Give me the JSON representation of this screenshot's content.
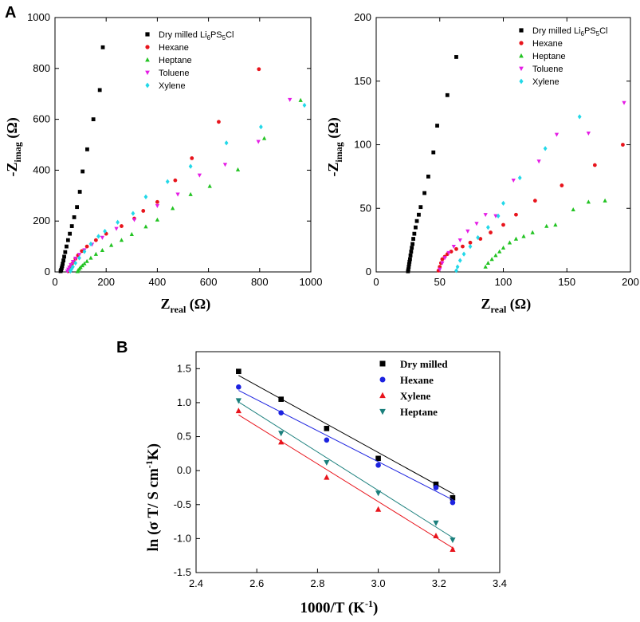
{
  "panel_labels": {
    "a": "A",
    "b": "B"
  },
  "chart_data": [
    {
      "id": "A1",
      "type": "scatter",
      "title": "",
      "xlabel": "Z",
      "xlabel_sub": "real",
      "xlabel_unit": " (Ω)",
      "ylabel": "-Z",
      "ylabel_sub": "imag",
      "ylabel_unit": " (Ω)",
      "xlim": [
        0,
        1000
      ],
      "ylim": [
        0,
        1000
      ],
      "xticks": [
        0,
        200,
        400,
        600,
        800,
        1000
      ],
      "yticks": [
        0,
        200,
        400,
        600,
        800,
        1000
      ],
      "legend": "top-right",
      "series": [
        {
          "name": "Dry milled Li6PS5Cl",
          "label_main": "Dry milled Li",
          "sub1": "6",
          "mid": "PS",
          "sub2": "5",
          "tail": "Cl",
          "color": "#000000",
          "marker": "square",
          "points": [
            [
              22,
              3
            ],
            [
              24,
              8
            ],
            [
              26,
              14
            ],
            [
              28,
              22
            ],
            [
              30,
              32
            ],
            [
              33,
              45
            ],
            [
              36,
              60
            ],
            [
              40,
              78
            ],
            [
              45,
              100
            ],
            [
              51,
              125
            ],
            [
              58,
              150
            ],
            [
              66,
              180
            ],
            [
              75,
              215
            ],
            [
              86,
              255
            ],
            [
              97,
              315
            ],
            [
              108,
              395
            ],
            [
              126,
              482
            ],
            [
              150,
              600
            ],
            [
              175,
              715
            ],
            [
              187,
              883
            ]
          ]
        },
        {
          "name": "Hexane",
          "label_main": "Hexane",
          "color": "#e8141c",
          "marker": "circle",
          "points": [
            [
              52,
              3
            ],
            [
              55,
              8
            ],
            [
              58,
              14
            ],
            [
              62,
              22
            ],
            [
              66,
              30
            ],
            [
              72,
              40
            ],
            [
              80,
              52
            ],
            [
              90,
              65
            ],
            [
              105,
              82
            ],
            [
              125,
              100
            ],
            [
              160,
              125
            ],
            [
              200,
              150
            ],
            [
              260,
              180
            ],
            [
              310,
              210
            ],
            [
              345,
              240
            ],
            [
              400,
              275
            ],
            [
              470,
              360
            ],
            [
              535,
              447
            ],
            [
              640,
              590
            ],
            [
              797,
              797
            ]
          ]
        },
        {
          "name": "Heptane",
          "label_main": "Heptane",
          "color": "#22c322",
          "marker": "triangle",
          "points": [
            [
              88,
              2
            ],
            [
              90,
              6
            ],
            [
              95,
              12
            ],
            [
              100,
              18
            ],
            [
              107,
              25
            ],
            [
              115,
              33
            ],
            [
              125,
              42
            ],
            [
              140,
              55
            ],
            [
              160,
              70
            ],
            [
              185,
              85
            ],
            [
              220,
              105
            ],
            [
              260,
              125
            ],
            [
              300,
              148
            ],
            [
              355,
              178
            ],
            [
              400,
              205
            ],
            [
              460,
              250
            ],
            [
              530,
              305
            ],
            [
              605,
              337
            ],
            [
              715,
              402
            ],
            [
              818,
              525
            ],
            [
              960,
              675
            ]
          ]
        },
        {
          "name": "Toluene",
          "label_main": "Toluene",
          "color": "#e51ce5",
          "marker": "triangle-down",
          "points": [
            [
              48,
              3
            ],
            [
              52,
              10
            ],
            [
              56,
              18
            ],
            [
              62,
              28
            ],
            [
              70,
              40
            ],
            [
              80,
              53
            ],
            [
              95,
              68
            ],
            [
              115,
              86
            ],
            [
              145,
              108
            ],
            [
              185,
              135
            ],
            [
              240,
              170
            ],
            [
              310,
              205
            ],
            [
              400,
              260
            ],
            [
              480,
              305
            ],
            [
              565,
              380
            ],
            [
              665,
              422
            ],
            [
              795,
              512
            ],
            [
              918,
              677
            ]
          ]
        },
        {
          "name": "Xylene",
          "label_main": "Xylene",
          "color": "#22d8e8",
          "marker": "diamond",
          "points": [
            [
              60,
              3
            ],
            [
              64,
              10
            ],
            [
              70,
              20
            ],
            [
              80,
              35
            ],
            [
              95,
              55
            ],
            [
              115,
              80
            ],
            [
              140,
              110
            ],
            [
              170,
              140
            ],
            [
              195,
              160
            ],
            [
              245,
              195
            ],
            [
              305,
              230
            ],
            [
              355,
              295
            ],
            [
              440,
              355
            ],
            [
              530,
              415
            ],
            [
              670,
              507
            ],
            [
              805,
              570
            ],
            [
              975,
              655
            ]
          ]
        }
      ]
    },
    {
      "id": "A2",
      "type": "scatter",
      "title": "",
      "xlabel": "Z",
      "xlabel_sub": "real",
      "xlabel_unit": " (Ω)",
      "ylabel": "-Z",
      "ylabel_sub": "imag",
      "ylabel_unit": " (Ω)",
      "xlim": [
        0,
        200
      ],
      "ylim": [
        0,
        200
      ],
      "xticks": [
        0,
        50,
        100,
        150,
        200
      ],
      "yticks": [
        0,
        50,
        100,
        150,
        200
      ],
      "legend": "top-right",
      "series": [
        {
          "name": "Dry milled Li6PS5Cl",
          "label_main": "Dry milled Li",
          "sub1": "6",
          "mid": "PS",
          "sub2": "5",
          "tail": "Cl",
          "color": "#000000",
          "marker": "square",
          "points": [
            [
              25,
              0.5
            ],
            [
              25.3,
              2
            ],
            [
              25.6,
              4
            ],
            [
              25.9,
              6
            ],
            [
              26.2,
              8
            ],
            [
              26.6,
              10
            ],
            [
              27,
              13
            ],
            [
              27.5,
              16
            ],
            [
              28,
              19
            ],
            [
              28.6,
              22
            ],
            [
              29.2,
              26
            ],
            [
              30,
              30
            ],
            [
              31,
              35
            ],
            [
              32,
              40
            ],
            [
              33.5,
              45
            ],
            [
              35,
              51
            ],
            [
              38,
              62
            ],
            [
              41,
              75
            ],
            [
              45,
              94
            ],
            [
              48,
              115
            ],
            [
              56,
              139
            ],
            [
              63,
              169
            ]
          ]
        },
        {
          "name": "Hexane",
          "label_main": "Hexane",
          "color": "#e8141c",
          "marker": "circle",
          "points": [
            [
              49,
              1
            ],
            [
              50,
              4
            ],
            [
              51,
              7
            ],
            [
              52,
              10
            ],
            [
              54,
              12
            ],
            [
              56,
              14
            ],
            [
              59,
              16
            ],
            [
              63,
              18
            ],
            [
              68,
              20
            ],
            [
              74,
              23
            ],
            [
              82,
              26
            ],
            [
              90,
              31
            ],
            [
              100,
              37
            ],
            [
              110,
              45
            ],
            [
              125,
              56
            ],
            [
              146,
              68
            ],
            [
              172,
              84
            ],
            [
              194,
              100
            ]
          ]
        },
        {
          "name": "Heptane",
          "label_main": "Heptane",
          "color": "#22c322",
          "marker": "triangle",
          "points": [
            [
              86,
              4
            ],
            [
              88,
              7
            ],
            [
              91,
              10
            ],
            [
              94,
              13
            ],
            [
              97,
              16
            ],
            [
              100,
              19
            ],
            [
              105,
              23
            ],
            [
              110,
              26
            ],
            [
              116,
              28
            ],
            [
              123,
              31
            ],
            [
              134,
              36
            ],
            [
              141,
              37
            ],
            [
              155,
              49
            ],
            [
              167,
              55
            ],
            [
              180,
              56
            ]
          ]
        },
        {
          "name": "Toluene",
          "label_main": "Toluene",
          "color": "#e51ce5",
          "marker": "triangle-down",
          "points": [
            [
              50,
              2
            ],
            [
              52,
              7
            ],
            [
              54,
              11
            ],
            [
              57,
              15
            ],
            [
              61,
              20
            ],
            [
              66,
              25
            ],
            [
              72,
              32
            ],
            [
              79,
              38
            ],
            [
              86,
              45
            ],
            [
              94,
              44
            ],
            [
              108,
              72
            ],
            [
              128,
              87
            ],
            [
              142,
              108
            ],
            [
              167,
              109
            ],
            [
              195,
              133
            ]
          ]
        },
        {
          "name": "Xylene",
          "label_main": "Xylene",
          "color": "#22d8e8",
          "marker": "diamond",
          "points": [
            [
              63,
              1
            ],
            [
              64,
              4
            ],
            [
              66,
              9
            ],
            [
              69,
              14
            ],
            [
              74,
              20
            ],
            [
              80,
              27
            ],
            [
              88,
              35
            ],
            [
              96,
              44
            ],
            [
              100,
              54
            ],
            [
              113,
              74
            ],
            [
              133,
              97
            ],
            [
              160,
              122
            ]
          ]
        }
      ]
    },
    {
      "id": "B",
      "type": "scatter",
      "title": "",
      "xlabel": "1000/T (K",
      "xlabel_sup": "-1",
      "xlabel_tail": ")",
      "ylabel": "ln (σ T/ S cm",
      "ylabel_sup": "-1",
      "ylabel_tail": "K)",
      "xlim": [
        2.4,
        3.4
      ],
      "ylim": [
        -1.5,
        1.75
      ],
      "xticks": [
        2.4,
        2.6,
        2.8,
        3.0,
        3.2,
        3.4
      ],
      "yticks": [
        -1.5,
        -1.0,
        -0.5,
        0.0,
        0.5,
        1.0,
        1.5
      ],
      "xtick_labels": [
        "2.4",
        "2.6",
        "2.8",
        "3.0",
        "3.2",
        "3.4"
      ],
      "ytick_labels": [
        "-1.5",
        "-1.0",
        "-0.5",
        "0.0",
        "0.5",
        "1.0",
        "1.5"
      ],
      "legend": "top-right",
      "series": [
        {
          "name": "Dry milled",
          "color": "#000000",
          "marker": "square",
          "x": [
            2.54,
            2.68,
            2.83,
            3.0,
            3.19,
            3.245
          ],
          "y": [
            1.46,
            1.05,
            0.62,
            0.18,
            -0.2,
            -0.4
          ],
          "fit": [
            [
              2.54,
              1.4
            ],
            [
              3.25,
              -0.35
            ]
          ]
        },
        {
          "name": "Hexane",
          "color": "#1c22e0",
          "marker": "circle",
          "x": [
            2.54,
            2.68,
            2.83,
            3.0,
            3.19,
            3.245
          ],
          "y": [
            1.23,
            0.85,
            0.45,
            0.08,
            -0.25,
            -0.47
          ],
          "fit": [
            [
              2.54,
              1.18
            ],
            [
              3.25,
              -0.44
            ]
          ]
        },
        {
          "name": "Xylene",
          "color": "#e8141c",
          "marker": "triangle",
          "x": [
            2.54,
            2.68,
            2.83,
            3.0,
            3.19,
            3.245
          ],
          "y": [
            0.88,
            0.42,
            -0.1,
            -0.57,
            -0.96,
            -1.16
          ],
          "fit": [
            [
              2.54,
              0.82
            ],
            [
              3.25,
              -1.15
            ]
          ]
        },
        {
          "name": "Heptane",
          "color": "#1a7f7c",
          "marker": "triangle-down",
          "x": [
            2.54,
            2.68,
            2.83,
            3.0,
            3.19,
            3.245
          ],
          "y": [
            1.03,
            0.55,
            0.12,
            -0.33,
            -0.77,
            -1.02
          ],
          "fit": [
            [
              2.54,
              1.01
            ],
            [
              3.25,
              -1.0
            ]
          ]
        }
      ]
    }
  ]
}
